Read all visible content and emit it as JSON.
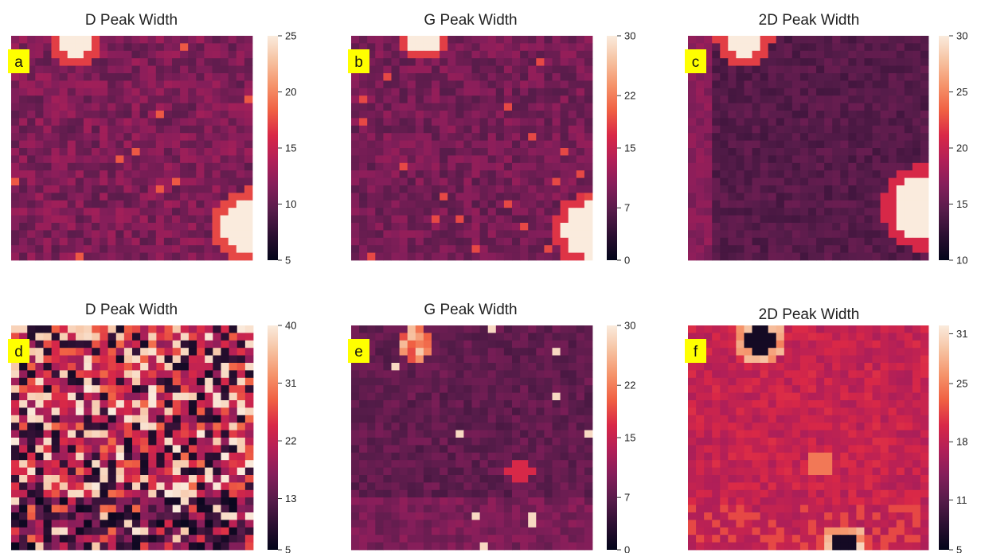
{
  "chart_data": [
    {
      "type": "heatmap",
      "letter": "a",
      "title": "D Peak Width",
      "colorbar": {
        "range": [
          5,
          25
        ],
        "ticks": [
          5,
          10,
          15,
          20,
          25
        ]
      }
    },
    {
      "type": "heatmap",
      "letter": "b",
      "title": "G Peak Width",
      "colorbar": {
        "range": [
          0,
          30
        ],
        "ticks": [
          0,
          7,
          15,
          22,
          30
        ]
      }
    },
    {
      "type": "heatmap",
      "letter": "c",
      "title": "2D Peak Width",
      "colorbar": {
        "range": [
          10,
          30
        ],
        "ticks": [
          10,
          15,
          20,
          25,
          30
        ]
      }
    },
    {
      "type": "heatmap",
      "letter": "d",
      "title": "D Peak Width",
      "colorbar": {
        "range": [
          5,
          40
        ],
        "ticks": [
          5,
          13,
          22,
          31,
          40
        ]
      }
    },
    {
      "type": "heatmap",
      "letter": "e",
      "title": "G Peak Width",
      "colorbar": {
        "range": [
          0,
          30
        ],
        "ticks": [
          0,
          7,
          15,
          22,
          30
        ]
      }
    },
    {
      "type": "heatmap",
      "letter": "f",
      "title": "2D Peak Width",
      "colorbar": {
        "range": [
          5,
          32
        ],
        "ticks": [
          5,
          11,
          18,
          25,
          31
        ]
      }
    }
  ],
  "colors": {
    "colormap": [
      "#03051a",
      "#2b0f31",
      "#571c4a",
      "#841e5a",
      "#b11f58",
      "#d92847",
      "#f06043",
      "#f5936a",
      "#f6c2a1",
      "#faebdd"
    ],
    "label_box": "#ffff00"
  }
}
